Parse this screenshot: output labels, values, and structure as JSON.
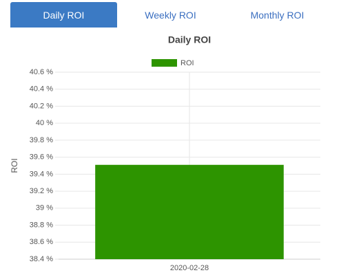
{
  "tabs": [
    "Daily ROI",
    "Weekly ROI",
    "Monthly ROI"
  ],
  "active_tab": 0,
  "chart_data": {
    "type": "bar",
    "title": "Daily ROI",
    "y_label": "ROI",
    "categories": [
      "2020-02-28"
    ],
    "series": [
      {
        "name": "ROI",
        "color": "#2d9400",
        "values": [
          39.51
        ]
      }
    ],
    "ylim": [
      38.4,
      40.6
    ],
    "yticks": [
      {
        "value": 38.4,
        "label": "38.4 %"
      },
      {
        "value": 38.6,
        "label": "38.6 %"
      },
      {
        "value": 38.8,
        "label": "38.8 %"
      },
      {
        "value": 39,
        "label": "39 %"
      },
      {
        "value": 39.2,
        "label": "39.2 %"
      },
      {
        "value": 39.4,
        "label": "39.4 %"
      },
      {
        "value": 39.6,
        "label": "39.6 %"
      },
      {
        "value": 39.8,
        "label": "39.8 %"
      },
      {
        "value": 40,
        "label": "40 %"
      },
      {
        "value": 40.2,
        "label": "40.2 %"
      },
      {
        "value": 40.4,
        "label": "40.4 %"
      },
      {
        "value": 40.6,
        "label": "40.6 %"
      }
    ],
    "grid": true
  }
}
